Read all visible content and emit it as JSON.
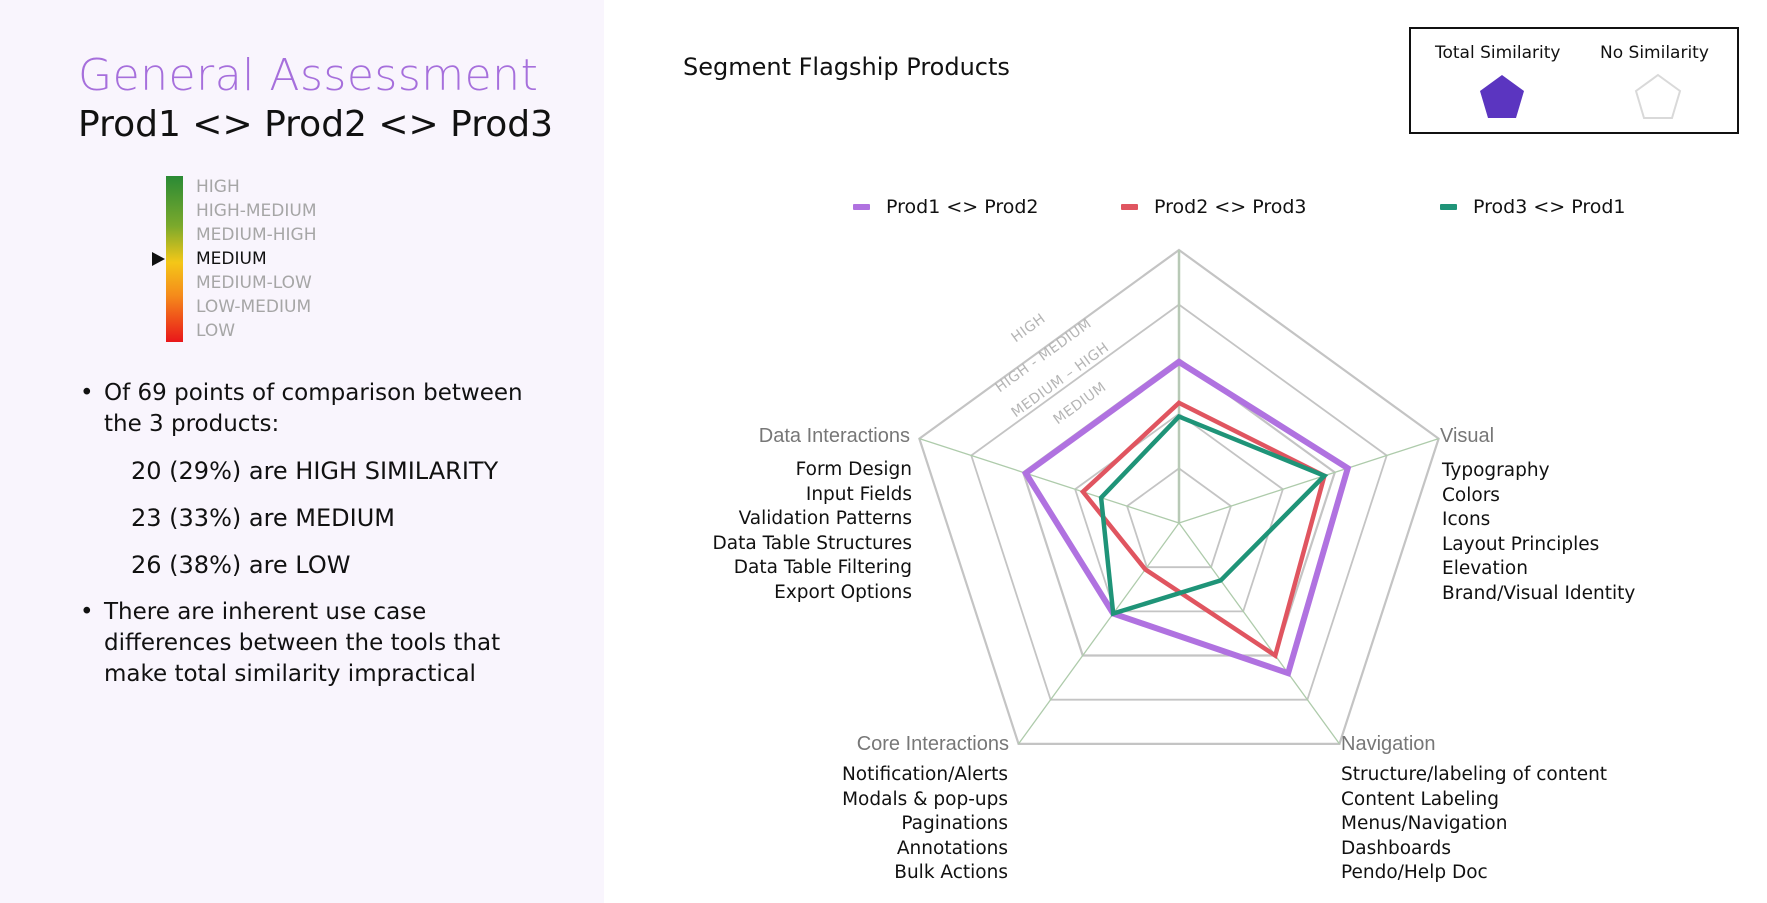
{
  "left_panel": {
    "title": "General Assessment",
    "subtitle": "Prod1 <> Prod2 <> Prod3",
    "scale": {
      "levels": [
        "HIGH",
        "HIGH-MEDIUM",
        "MEDIUM-HIGH",
        "MEDIUM",
        "MEDIUM-LOW",
        "LOW-MEDIUM",
        "LOW"
      ],
      "active_level": "MEDIUM",
      "active_index": 3,
      "colors": {
        "top": "#2a8a35",
        "middle": "#f4c718",
        "bottom": "#e9161a"
      }
    },
    "bullets": [
      {
        "text": "Of 69 points of comparison between the 3 products:"
      },
      {
        "text": "There are inherent use case differences between the tools that make total similarity impractical"
      }
    ],
    "stats": [
      "20 (29%) are HIGH SIMILARITY",
      "23 (33%) are MEDIUM",
      "26 (38%) are LOW"
    ],
    "bullet_char": "•"
  },
  "chart_header": {
    "title": "Segment Flagship Products"
  },
  "similarity_key": {
    "total_label": "Total Similarity",
    "none_label": "No Similarity",
    "total_color": "#5b35c0",
    "none_color": "#d9d9d9"
  },
  "chart_data": {
    "type": "radar",
    "title": "Segment Flagship Products",
    "axes": [
      "Visual",
      "Navigation",
      "Core Interactions",
      "Data Interactions",
      ""
    ],
    "axis_order_clockwise_from_top": [
      "(top, unlabeled)",
      "Visual",
      "Navigation",
      "Core Interactions",
      "Data Interactions"
    ],
    "ring_labels": [
      "MEDIUM",
      "MEDIUM – HIGH",
      "HIGH - MEDIUM",
      "HIGH"
    ],
    "range": [
      0,
      1
    ],
    "rings": 5,
    "grid": true,
    "legend_position": "top",
    "series": [
      {
        "name": "Prod1 <> Prod2",
        "color": "#b072e0",
        "values": [
          0.59,
          0.65,
          0.68,
          0.41,
          0.59
        ]
      },
      {
        "name": "Prod2 <> Prod3",
        "color": "#e05560",
        "values": [
          0.44,
          0.56,
          0.6,
          0.21,
          0.37
        ]
      },
      {
        "name": "Prod3 <> Prod1",
        "color": "#1f9478",
        "values": [
          0.39,
          0.56,
          0.26,
          0.41,
          0.3
        ]
      }
    ],
    "axis_details": {
      "Visual": [
        "Typography",
        "Colors",
        "Icons",
        "Layout Principles",
        "Elevation",
        "Brand/Visual Identity"
      ],
      "Navigation": [
        "Structure/labeling of content",
        "Content Labeling",
        "Menus/Navigation",
        "Dashboards",
        "Pendo/Help Doc"
      ],
      "Core Interactions": [
        "Notification/Alerts",
        "Modals & pop-ups",
        "Paginations",
        "Annotations",
        "Bulk Actions"
      ],
      "Data Interactions": [
        "Form Design",
        "Input Fields",
        "Validation Patterns",
        "Data Table Structures",
        "Data Table Filtering",
        "Export Options"
      ]
    }
  },
  "axis_labels": {
    "data": {
      "title": "Data Interactions",
      "items": [
        "Form Design",
        "Input Fields",
        "Validation Patterns",
        "Data Table Structures",
        "Data Table Filtering",
        "Export Options"
      ]
    },
    "visual": {
      "title": "Visual",
      "items": [
        "Typography",
        "Colors",
        "Icons",
        "Layout Principles",
        "Elevation",
        "Brand/Visual Identity"
      ]
    },
    "core": {
      "title": "Core Interactions",
      "items": [
        "Notification/Alerts",
        "Modals & pop-ups",
        "Paginations",
        "Annotations",
        "Bulk Actions"
      ]
    },
    "nav": {
      "title": "Navigation",
      "items": [
        "Structure/labeling of content",
        "Content Labeling",
        "Menus/Navigation",
        "Dashboards",
        "Pendo/Help Doc"
      ]
    }
  }
}
